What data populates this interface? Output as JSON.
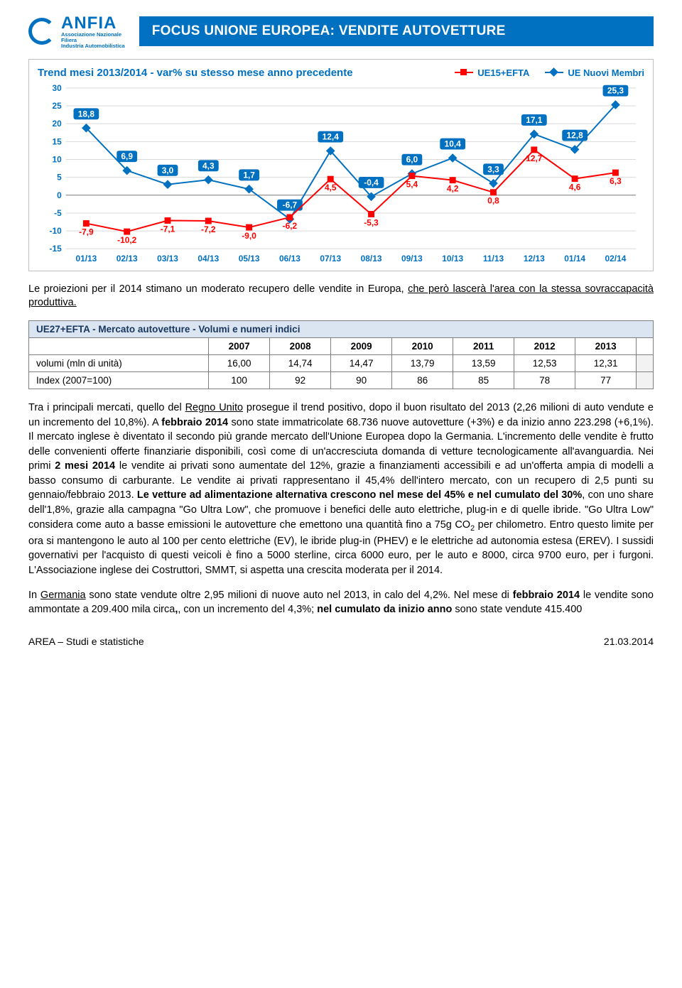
{
  "header": {
    "logo_main": "ANFIA",
    "logo_sub1": "Associazione Nazionale",
    "logo_sub2": "Filiera",
    "logo_sub3": "Industria Automobilistica",
    "title": "FOCUS UNIONE EUROPEA: VENDITE AUTOVETTURE"
  },
  "chart": {
    "title": "Trend mesi 2013/2014 - var% su stesso mese anno precedente",
    "type": "line",
    "legend": {
      "a": "UE15+EFTA",
      "b": "UE Nuovi Membri"
    },
    "colors": {
      "a": "#ff0000",
      "b": "#0070c0",
      "grid": "#d9d9d9",
      "axis": "#808080",
      "bg": "#ffffff"
    },
    "categories": [
      "01/13",
      "02/13",
      "03/13",
      "04/13",
      "05/13",
      "06/13",
      "07/13",
      "08/13",
      "09/13",
      "10/13",
      "11/13",
      "12/13",
      "01/14",
      "02/14"
    ],
    "series_a": [
      -7.9,
      -10.2,
      -7.1,
      -7.2,
      -9.0,
      -6.2,
      4.5,
      -5.3,
      5.4,
      4.2,
      0.8,
      12.7,
      4.6,
      6.3
    ],
    "series_b": [
      18.8,
      6.9,
      3.0,
      4.3,
      1.7,
      -6.7,
      12.4,
      -0.4,
      6.0,
      10.4,
      3.3,
      17.1,
      12.8,
      25.3
    ],
    "ylim": [
      -15,
      30
    ],
    "ytick_step": 5,
    "label_fontsize": 12,
    "title_fontsize": 15,
    "line_width": 2,
    "marker_size": 9
  },
  "intro": {
    "text_a": "Le proiezioni per il 2014 stimano un moderato recupero delle vendite in Europa, ",
    "text_b": "che però lascerà l'area con la stessa sovraccapacità produttiva.",
    "underline_word": "che"
  },
  "table": {
    "title": "UE27+EFTA - Mercato autovetture - Volumi e numeri indici",
    "years": [
      "2007",
      "2008",
      "2009",
      "2010",
      "2011",
      "2012",
      "2013"
    ],
    "rows": [
      {
        "label": "volumi (mln di unità)",
        "values": [
          "16,00",
          "14,74",
          "14,47",
          "13,79",
          "13,59",
          "12,53",
          "12,31"
        ]
      },
      {
        "label": "Index (2007=100)",
        "values": [
          "100",
          "92",
          "90",
          "86",
          "85",
          "78",
          "77"
        ]
      }
    ],
    "colors": {
      "header_bg": "#dbe5f1",
      "header_fg": "#17365d",
      "border": "#7f7f7f"
    }
  },
  "para1": "Tra i principali mercati, quello del Regno Unito prosegue il trend positivo, dopo il buon risultato del 2013 (2,26 milioni di auto vendute e un incremento del 10,8%). A febbraio 2014 sono state immatricolate 68.736 nuove autovetture (+3%) e da inizio anno 223.298 (+6,1%). Il mercato inglese è diventato il secondo più grande mercato dell'Unione Europea dopo la Germania. L'incremento delle vendite è frutto delle convenienti offerte finanziarie disponibili, così come di un'accresciuta domanda di vetture tecnologicamente all'avanguardia. Nei primi 2 mesi 2014 le vendite ai privati sono aumentate del 12%, grazie a finanziamenti accessibili e ad un'offerta ampia di modelli a basso consumo di carburante. Le vendite ai privati rappresentano il 45,4% dell'intero mercato, con un recupero di 2,5 punti su gennaio/febbraio 2013. Le vetture ad alimentazione alternativa crescono nel mese del 45% e nel cumulato del 30%, con uno share dell'1,8%, grazie alla campagna \"Go Ultra Low\", che promuove i benefici delle auto elettriche, plug-in e di quelle ibride. \"Go Ultra Low\" considera come auto a basse emissioni le autovetture che emettono una quantità fino a 75g CO₂ per chilometro. Entro questo limite per ora si mantengono le auto al 100 per cento elettriche (EV), le ibride plug-in (PHEV) e le elettriche ad autonomia estesa (EREV). I sussidi governativi per l'acquisto di questi veicoli è fino a 5000 sterline, circa 6000 euro, per le auto e 8000, circa 9700 euro, per i furgoni. L'Associazione inglese dei Costruttori, SMMT, si aspetta una crescita moderata per il 2014.",
  "para2": "In Germania sono state vendute oltre 2,95 milioni di nuove auto nel 2013, in calo del 4,2%. Nel mese di febbraio 2014 le vendite sono ammontate a 209.400 mila circa, con un incremento del 4,3%; nel cumulato da inizio anno sono state vendute 415.400",
  "footer": {
    "left": "AREA – Studi e statistiche",
    "right": "21.03.2014"
  }
}
